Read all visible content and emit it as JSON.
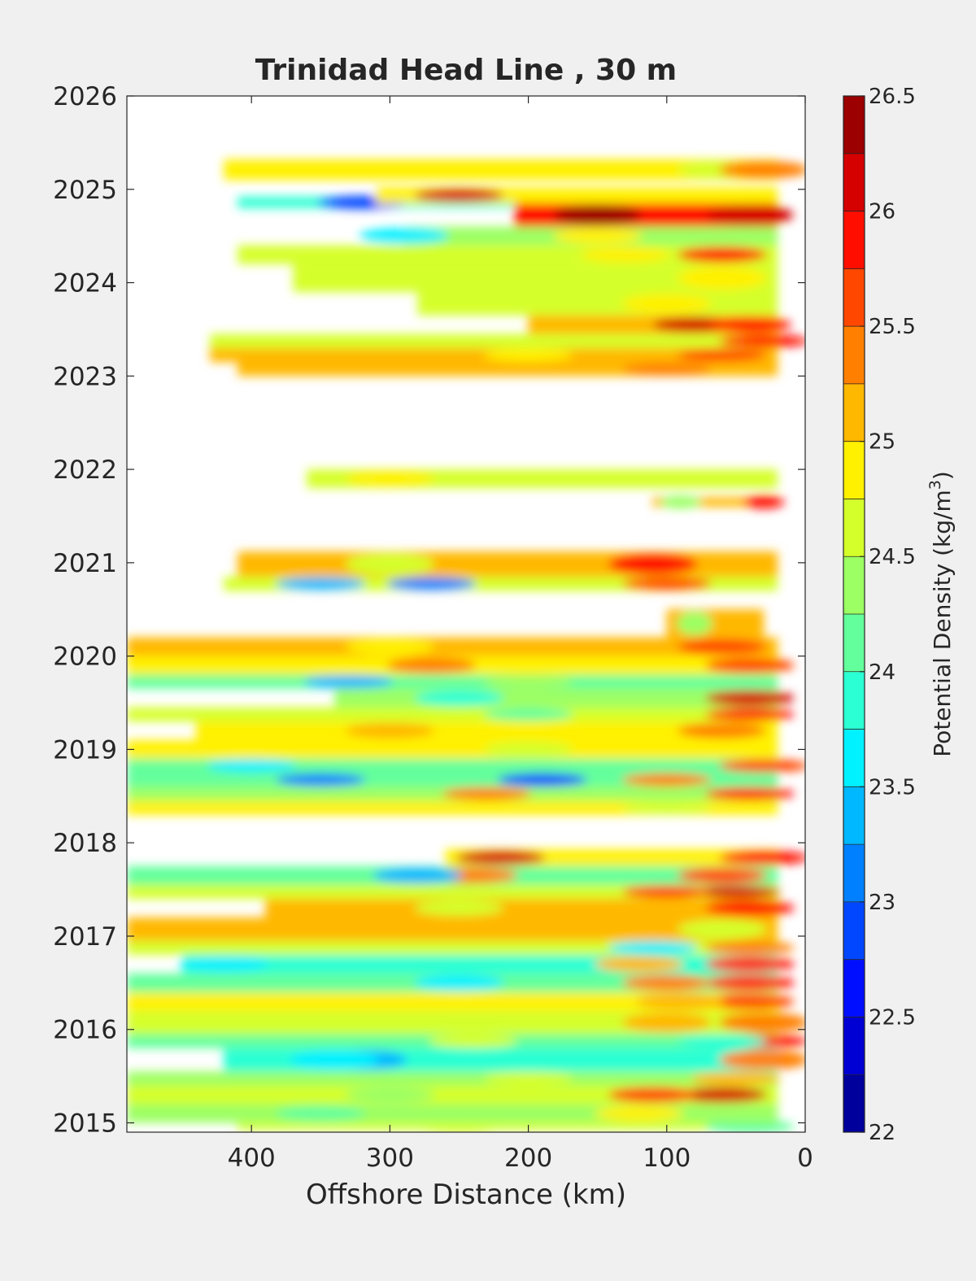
{
  "chart_data": {
    "type": "heatmap",
    "title": "Trinidad Head Line , 30 m",
    "xlabel": "Offshore Distance (km)",
    "ylabel": "",
    "x_reversed": true,
    "xlim": [
      490,
      0
    ],
    "ylim": [
      2014.9,
      2026
    ],
    "xticks": [
      400,
      300,
      200,
      100,
      0
    ],
    "yticks": [
      2015,
      2016,
      2017,
      2018,
      2019,
      2020,
      2021,
      2022,
      2023,
      2024,
      2025,
      2026
    ],
    "colorbar": {
      "label": "Potential Density (kg/m",
      "label_superscript": "3",
      "label_suffix": ")",
      "min": 22,
      "max": 26.5,
      "step": 0.25,
      "ticks": [
        22,
        22.5,
        23,
        23.5,
        24,
        24.5,
        25,
        25.5,
        26,
        26.5
      ],
      "colormap": "jet"
    },
    "data_gaps": [
      "2018.0-2018.3",
      "2020.3-2020.7",
      "2021.9-2023.0",
      "2025.3-2026.0"
    ],
    "bands": [
      {
        "y0": 2014.92,
        "y1": 2015.0,
        "x_from": 20,
        "x_to": 410,
        "v": 24.6,
        "spots": [
          {
            "x": 40,
            "v": 24.0
          },
          {
            "x": 250,
            "v": 24.6
          }
        ]
      },
      {
        "y0": 2015.0,
        "y1": 2015.2,
        "x_from": 20,
        "x_to": 490,
        "v": 24.45,
        "spots": [
          {
            "x": 120,
            "v": 24.9
          },
          {
            "x": 350,
            "v": 24.2
          }
        ]
      },
      {
        "y0": 2015.2,
        "y1": 2015.4,
        "x_from": 20,
        "x_to": 490,
        "v": 24.55,
        "spots": [
          {
            "x": 60,
            "v": 26.1
          },
          {
            "x": 110,
            "v": 25.6
          },
          {
            "x": 300,
            "v": 24.3
          }
        ]
      },
      {
        "y0": 2015.4,
        "y1": 2015.55,
        "x_from": 20,
        "x_to": 490,
        "v": 24.3,
        "spots": [
          {
            "x": 50,
            "v": 25.2
          },
          {
            "x": 200,
            "v": 24.6
          }
        ]
      },
      {
        "y0": 2015.55,
        "y1": 2015.8,
        "x_from": 20,
        "x_to": 420,
        "v": 23.9,
        "spots": [
          {
            "x": 320,
            "v": 23.3
          },
          {
            "x": 340,
            "v": 23.5
          },
          {
            "x": 30,
            "v": 25.4
          }
        ]
      },
      {
        "y0": 2015.8,
        "y1": 2015.95,
        "x_from": 20,
        "x_to": 490,
        "v": 24.0,
        "spots": [
          {
            "x": 240,
            "v": 24.5
          },
          {
            "x": 30,
            "v": 25.8
          },
          {
            "x": 60,
            "v": 23.8
          }
        ]
      },
      {
        "y0": 2015.95,
        "y1": 2016.2,
        "x_from": 20,
        "x_to": 490,
        "v": 24.6,
        "spots": [
          {
            "x": 100,
            "v": 25.0
          },
          {
            "x": 30,
            "v": 25.4
          }
        ]
      },
      {
        "y0": 2016.2,
        "y1": 2016.4,
        "x_from": 20,
        "x_to": 490,
        "v": 24.75,
        "spots": [
          {
            "x": 40,
            "v": 25.5
          },
          {
            "x": 90,
            "v": 25.1
          }
        ]
      },
      {
        "y0": 2016.4,
        "y1": 2016.6,
        "x_from": 20,
        "x_to": 490,
        "v": 24.1,
        "spots": [
          {
            "x": 40,
            "v": 25.9
          },
          {
            "x": 100,
            "v": 25.3
          },
          {
            "x": 250,
            "v": 23.6
          }
        ]
      },
      {
        "y0": 2016.6,
        "y1": 2016.8,
        "x_from": 20,
        "x_to": 450,
        "v": 23.8,
        "spots": [
          {
            "x": 420,
            "v": 23.5
          },
          {
            "x": 40,
            "v": 25.9
          },
          {
            "x": 120,
            "v": 25.0
          }
        ]
      },
      {
        "y0": 2016.8,
        "y1": 2016.95,
        "x_from": 20,
        "x_to": 490,
        "v": 24.5,
        "spots": [
          {
            "x": 110,
            "v": 23.7
          },
          {
            "x": 40,
            "v": 25.3
          }
        ]
      },
      {
        "y0": 2016.95,
        "y1": 2017.2,
        "x_from": 20,
        "x_to": 490,
        "v": 25.05,
        "spots": [
          {
            "x": 60,
            "v": 24.6
          },
          {
            "x": 300,
            "v": 25.1
          }
        ]
      },
      {
        "y0": 2017.2,
        "y1": 2017.4,
        "x_from": 20,
        "x_to": 390,
        "v": 25.0,
        "spots": [
          {
            "x": 40,
            "v": 25.8
          },
          {
            "x": 250,
            "v": 24.7
          }
        ]
      },
      {
        "y0": 2017.4,
        "y1": 2017.55,
        "x_from": 20,
        "x_to": 490,
        "v": 24.55,
        "spots": [
          {
            "x": 50,
            "v": 26.0
          },
          {
            "x": 100,
            "v": 25.5
          }
        ]
      },
      {
        "y0": 2017.55,
        "y1": 2017.75,
        "x_from": 20,
        "x_to": 490,
        "v": 24.0,
        "spots": [
          {
            "x": 240,
            "v": 25.3
          },
          {
            "x": 280,
            "v": 23.4
          },
          {
            "x": 60,
            "v": 25.6
          }
        ]
      },
      {
        "y0": 2017.75,
        "y1": 2017.93,
        "x_from": 20,
        "x_to": 260,
        "v": 24.8,
        "spots": [
          {
            "x": 220,
            "v": 26.0
          },
          {
            "x": 30,
            "v": 25.8
          }
        ]
      },
      {
        "y0": 2018.3,
        "y1": 2018.45,
        "x_from": 20,
        "x_to": 490,
        "v": 24.9,
        "spots": [
          {
            "x": 100,
            "v": 24.6
          }
        ]
      },
      {
        "y0": 2018.45,
        "y1": 2018.6,
        "x_from": 20,
        "x_to": 490,
        "v": 24.45,
        "spots": [
          {
            "x": 230,
            "v": 25.4
          },
          {
            "x": 40,
            "v": 25.8
          }
        ]
      },
      {
        "y0": 2018.6,
        "y1": 2018.75,
        "x_from": 20,
        "x_to": 490,
        "v": 24.0,
        "spots": [
          {
            "x": 190,
            "v": 22.9
          },
          {
            "x": 350,
            "v": 23.0
          },
          {
            "x": 100,
            "v": 25.3
          }
        ]
      },
      {
        "y0": 2018.75,
        "y1": 2018.9,
        "x_from": 20,
        "x_to": 490,
        "v": 24.2,
        "spots": [
          {
            "x": 400,
            "v": 23.7
          },
          {
            "x": 30,
            "v": 25.6
          }
        ]
      },
      {
        "y0": 2018.9,
        "y1": 2019.1,
        "x_from": 20,
        "x_to": 490,
        "v": 24.95,
        "spots": [
          {
            "x": 200,
            "v": 24.7
          }
        ]
      },
      {
        "y0": 2019.1,
        "y1": 2019.3,
        "x_from": 20,
        "x_to": 440,
        "v": 24.8,
        "spots": [
          {
            "x": 300,
            "v": 25.1
          },
          {
            "x": 60,
            "v": 25.4
          }
        ]
      },
      {
        "y0": 2019.3,
        "y1": 2019.45,
        "x_from": 20,
        "x_to": 490,
        "v": 24.5,
        "spots": [
          {
            "x": 40,
            "v": 25.9
          },
          {
            "x": 200,
            "v": 24.2
          }
        ]
      },
      {
        "y0": 2019.45,
        "y1": 2019.65,
        "x_from": 20,
        "x_to": 340,
        "v": 24.4,
        "spots": [
          {
            "x": 40,
            "v": 26.1
          },
          {
            "x": 250,
            "v": 23.8
          }
        ]
      },
      {
        "y0": 2019.65,
        "y1": 2019.8,
        "x_from": 20,
        "x_to": 490,
        "v": 24.0,
        "spots": [
          {
            "x": 330,
            "v": 23.4
          },
          {
            "x": 200,
            "v": 24.4
          }
        ]
      },
      {
        "y0": 2019.8,
        "y1": 2020.0,
        "x_from": 20,
        "x_to": 490,
        "v": 24.9,
        "spots": [
          {
            "x": 270,
            "v": 25.4
          },
          {
            "x": 40,
            "v": 25.5
          }
        ]
      },
      {
        "y0": 2020.0,
        "y1": 2020.2,
        "x_from": 20,
        "x_to": 490,
        "v": 25.1,
        "spots": [
          {
            "x": 60,
            "v": 25.7
          },
          {
            "x": 300,
            "v": 24.8
          }
        ]
      },
      {
        "y0": 2020.2,
        "y1": 2020.5,
        "x_from": 30,
        "x_to": 100,
        "v": 25.0,
        "spots": [
          {
            "x": 80,
            "v": 24.4
          }
        ]
      },
      {
        "y0": 2020.7,
        "y1": 2020.85,
        "x_from": 20,
        "x_to": 420,
        "v": 24.6,
        "spots": [
          {
            "x": 270,
            "v": 23.1
          },
          {
            "x": 350,
            "v": 23.3
          },
          {
            "x": 100,
            "v": 25.6
          }
        ]
      },
      {
        "y0": 2020.85,
        "y1": 2021.12,
        "x_from": 20,
        "x_to": 410,
        "v": 25.0,
        "spots": [
          {
            "x": 110,
            "v": 25.8
          },
          {
            "x": 300,
            "v": 24.5
          }
        ]
      },
      {
        "y0": 2021.6,
        "y1": 2021.7,
        "x_from": 20,
        "x_to": 110,
        "v": 25.2,
        "spots": [
          {
            "x": 30,
            "v": 25.9
          },
          {
            "x": 90,
            "v": 24.3
          }
        ]
      },
      {
        "y0": 2021.8,
        "y1": 2022.0,
        "x_from": 20,
        "x_to": 360,
        "v": 24.5,
        "spots": [
          {
            "x": 300,
            "v": 24.8
          }
        ]
      },
      {
        "y0": 2023.0,
        "y1": 2023.15,
        "x_from": 20,
        "x_to": 410,
        "v": 25.0,
        "spots": [
          {
            "x": 100,
            "v": 25.3
          }
        ]
      },
      {
        "y0": 2023.15,
        "y1": 2023.3,
        "x_from": 20,
        "x_to": 430,
        "v": 25.05,
        "spots": [
          {
            "x": 60,
            "v": 25.6
          },
          {
            "x": 200,
            "v": 24.8
          }
        ]
      },
      {
        "y0": 2023.3,
        "y1": 2023.45,
        "x_from": 20,
        "x_to": 430,
        "v": 24.7,
        "spots": [
          {
            "x": 30,
            "v": 25.8
          },
          {
            "x": 120,
            "v": 24.5
          }
        ]
      },
      {
        "y0": 2023.45,
        "y1": 2023.65,
        "x_from": 20,
        "x_to": 200,
        "v": 25.1,
        "spots": [
          {
            "x": 80,
            "v": 26.1
          },
          {
            "x": 40,
            "v": 25.9
          }
        ]
      },
      {
        "y0": 2023.65,
        "y1": 2023.9,
        "x_from": 20,
        "x_to": 280,
        "v": 24.7,
        "spots": [
          {
            "x": 100,
            "v": 24.9
          }
        ]
      },
      {
        "y0": 2023.9,
        "y1": 2024.2,
        "x_from": 20,
        "x_to": 370,
        "v": 24.65,
        "spots": [
          {
            "x": 60,
            "v": 24.8
          },
          {
            "x": 250,
            "v": 24.5
          }
        ]
      },
      {
        "y0": 2024.2,
        "y1": 2024.4,
        "x_from": 20,
        "x_to": 410,
        "v": 24.65,
        "spots": [
          {
            "x": 60,
            "v": 25.8
          },
          {
            "x": 130,
            "v": 24.9
          }
        ]
      },
      {
        "y0": 2024.4,
        "y1": 2024.6,
        "x_from": 20,
        "x_to": 290,
        "v": 24.3,
        "spots": [
          {
            "x": 290,
            "v": 23.6
          },
          {
            "x": 150,
            "v": 24.9
          }
        ]
      },
      {
        "y0": 2024.6,
        "y1": 2024.85,
        "x_from": 20,
        "x_to": 210,
        "v": 25.9,
        "spots": [
          {
            "x": 150,
            "v": 26.3
          },
          {
            "x": 40,
            "v": 26.2
          }
        ]
      },
      {
        "y0": 2024.8,
        "y1": 2024.92,
        "x_from": 210,
        "x_to": 410,
        "v": 23.9,
        "spots": [
          {
            "x": 320,
            "v": 22.9
          }
        ]
      },
      {
        "y0": 2024.85,
        "y1": 2025.02,
        "x_from": 20,
        "x_to": 310,
        "v": 24.8,
        "spots": [
          {
            "x": 250,
            "v": 26.0
          }
        ]
      },
      {
        "y0": 2025.1,
        "y1": 2025.32,
        "x_from": 20,
        "x_to": 420,
        "v": 24.9,
        "spots": [
          {
            "x": 60,
            "v": 24.6
          },
          {
            "x": 30,
            "v": 25.3
          }
        ]
      }
    ]
  }
}
